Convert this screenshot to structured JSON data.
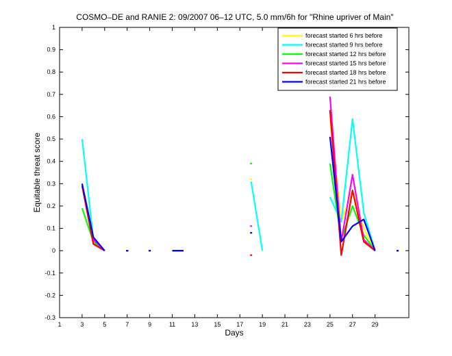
{
  "chart_data": {
    "type": "line",
    "title": "COSMO–DE and RANIE 2: 09/2007 06–12 UTC, 5.0 mm/6h for \"Rhine upriver of Main\"",
    "xlabel": "Days",
    "ylabel": "Equitable threat score",
    "xlim": [
      1,
      32
    ],
    "ylim": [
      -0.3,
      1
    ],
    "xticks": [
      1,
      3,
      5,
      7,
      9,
      11,
      13,
      15,
      17,
      19,
      21,
      23,
      25,
      27,
      29
    ],
    "yticks": [
      -0.3,
      -0.2,
      -0.1,
      0,
      0.1,
      0.2,
      0.3,
      0.4,
      0.5,
      0.6,
      0.7,
      0.8,
      0.9,
      1
    ],
    "legend_position": "top-right",
    "series": [
      {
        "name": "forecast started 6 hrs before",
        "color": "#ffff00",
        "values": [
          [
            3,
            0.29
          ],
          [
            4,
            0.05
          ],
          [
            5,
            0.0
          ],
          null,
          [
            7,
            0.0
          ],
          null,
          [
            9,
            0.0
          ],
          null,
          [
            11,
            0.0
          ],
          [
            12,
            0.0
          ],
          null,
          [
            18,
            0.32
          ],
          null,
          [
            25,
            0.6
          ],
          [
            26,
            0.13
          ],
          [
            27,
            0.27
          ],
          [
            28,
            0.1
          ],
          [
            29,
            0.0
          ],
          null,
          [
            31,
            0.0
          ]
        ]
      },
      {
        "name": "forecast started 9 hrs before",
        "color": "#00ffff",
        "values": [
          [
            3,
            0.5
          ],
          [
            4,
            0.05
          ],
          [
            5,
            0.0
          ],
          null,
          [
            7,
            0.0
          ],
          null,
          [
            9,
            0.0
          ],
          null,
          [
            11,
            0.0
          ],
          [
            12,
            0.0
          ],
          null,
          [
            18,
            0.31
          ],
          [
            19,
            0.0
          ],
          null,
          [
            25,
            0.24
          ],
          [
            26,
            0.13
          ],
          [
            27,
            0.59
          ],
          [
            28,
            0.17
          ],
          [
            29,
            0.0
          ],
          null,
          [
            31,
            0.0
          ]
        ]
      },
      {
        "name": "forecast started 12 hrs before",
        "color": "#00ff00",
        "values": [
          [
            3,
            0.19
          ],
          [
            4,
            0.04
          ],
          [
            5,
            0.0
          ],
          null,
          [
            7,
            0.0
          ],
          null,
          [
            9,
            0.0
          ],
          null,
          [
            11,
            0.0
          ],
          [
            12,
            0.0
          ],
          null,
          [
            18,
            0.39
          ],
          null,
          [
            25,
            0.39
          ],
          [
            26,
            0.05
          ],
          [
            27,
            0.2
          ],
          [
            28,
            0.07
          ],
          [
            29,
            0.0
          ],
          null,
          [
            31,
            0.0
          ]
        ]
      },
      {
        "name": "forecast started 15 hrs before",
        "color": "#ff00ff",
        "values": [
          [
            3,
            0.29
          ],
          [
            4,
            0.05
          ],
          [
            5,
            0.0
          ],
          null,
          [
            7,
            0.0
          ],
          null,
          [
            9,
            0.0
          ],
          null,
          [
            11,
            0.0
          ],
          [
            12,
            0.0
          ],
          null,
          [
            18,
            0.11
          ],
          null,
          [
            25,
            0.69
          ],
          [
            26,
            0.04
          ],
          [
            27,
            0.34
          ],
          [
            28,
            0.05
          ],
          [
            29,
            0.0
          ],
          null,
          [
            31,
            0.0
          ]
        ]
      },
      {
        "name": "forecast started 18 hrs before",
        "color": "#ff0000",
        "values": [
          [
            3,
            0.29
          ],
          [
            4,
            0.03
          ],
          [
            5,
            0.0
          ],
          null,
          [
            7,
            0.0
          ],
          null,
          [
            9,
            0.0
          ],
          null,
          [
            11,
            0.0
          ],
          [
            12,
            0.0
          ],
          null,
          [
            18,
            -0.02
          ],
          null,
          [
            25,
            0.63
          ],
          [
            26,
            -0.02
          ],
          [
            27,
            0.27
          ],
          [
            28,
            0.04
          ],
          [
            29,
            0.0
          ],
          null,
          [
            31,
            0.0
          ]
        ]
      },
      {
        "name": "forecast started 21 hrs before",
        "color": "#0000ff",
        "values": [
          [
            3,
            0.3
          ],
          [
            4,
            0.06
          ],
          [
            5,
            0.0
          ],
          null,
          [
            7,
            0.0
          ],
          null,
          [
            9,
            0.0
          ],
          null,
          [
            11,
            0.0
          ],
          [
            12,
            0.0
          ],
          null,
          [
            18,
            0.08
          ],
          null,
          [
            25,
            0.51
          ],
          [
            26,
            0.04
          ],
          [
            27,
            0.11
          ],
          [
            28,
            0.14
          ],
          [
            29,
            0.0
          ],
          null,
          [
            31,
            0.0
          ]
        ]
      }
    ]
  }
}
